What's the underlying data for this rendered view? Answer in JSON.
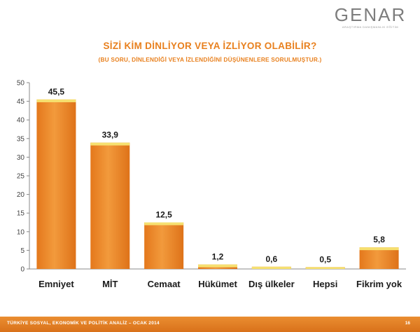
{
  "logo": {
    "name": "GENAR",
    "tagline": "ARAŞTIRMA DANIŞMANLIK EĞİTİM"
  },
  "footer": {
    "text": "TÜRKİYE SOSYAL, EKONOMİK VE POLİTİK ANALİZ – OCAK 2014",
    "page": "16"
  },
  "chart_data": {
    "type": "bar",
    "title": "SİZİ KİM  DİNLİYOR VEYA İZLİYOR OLABİLİR?",
    "subtitle": "(BU SORU, DİNLENDİĞİ VEYA İZLENDİĞİNİ DÜŞÜNENLERE SORULMUŞTUR.)",
    "categories": [
      "Emniyet",
      "MİT",
      "Cemaat",
      "Hükümet",
      "Dış ülkeler",
      "Hepsi",
      "Fikrim yok"
    ],
    "values": [
      45.5,
      33.9,
      12.5,
      1.2,
      0.6,
      0.5,
      5.8
    ],
    "value_labels": [
      "45,5",
      "33,9",
      "12,5",
      "1,2",
      "0,6",
      "0,5",
      "5,8"
    ],
    "yticks": [
      0,
      5,
      10,
      15,
      20,
      25,
      30,
      35,
      40,
      45,
      50
    ],
    "ylim": [
      0,
      50
    ],
    "xlabel": "",
    "ylabel": "",
    "grid": false,
    "bar_color": "#ee8a2e",
    "bar_top_color": "#f6e070"
  }
}
